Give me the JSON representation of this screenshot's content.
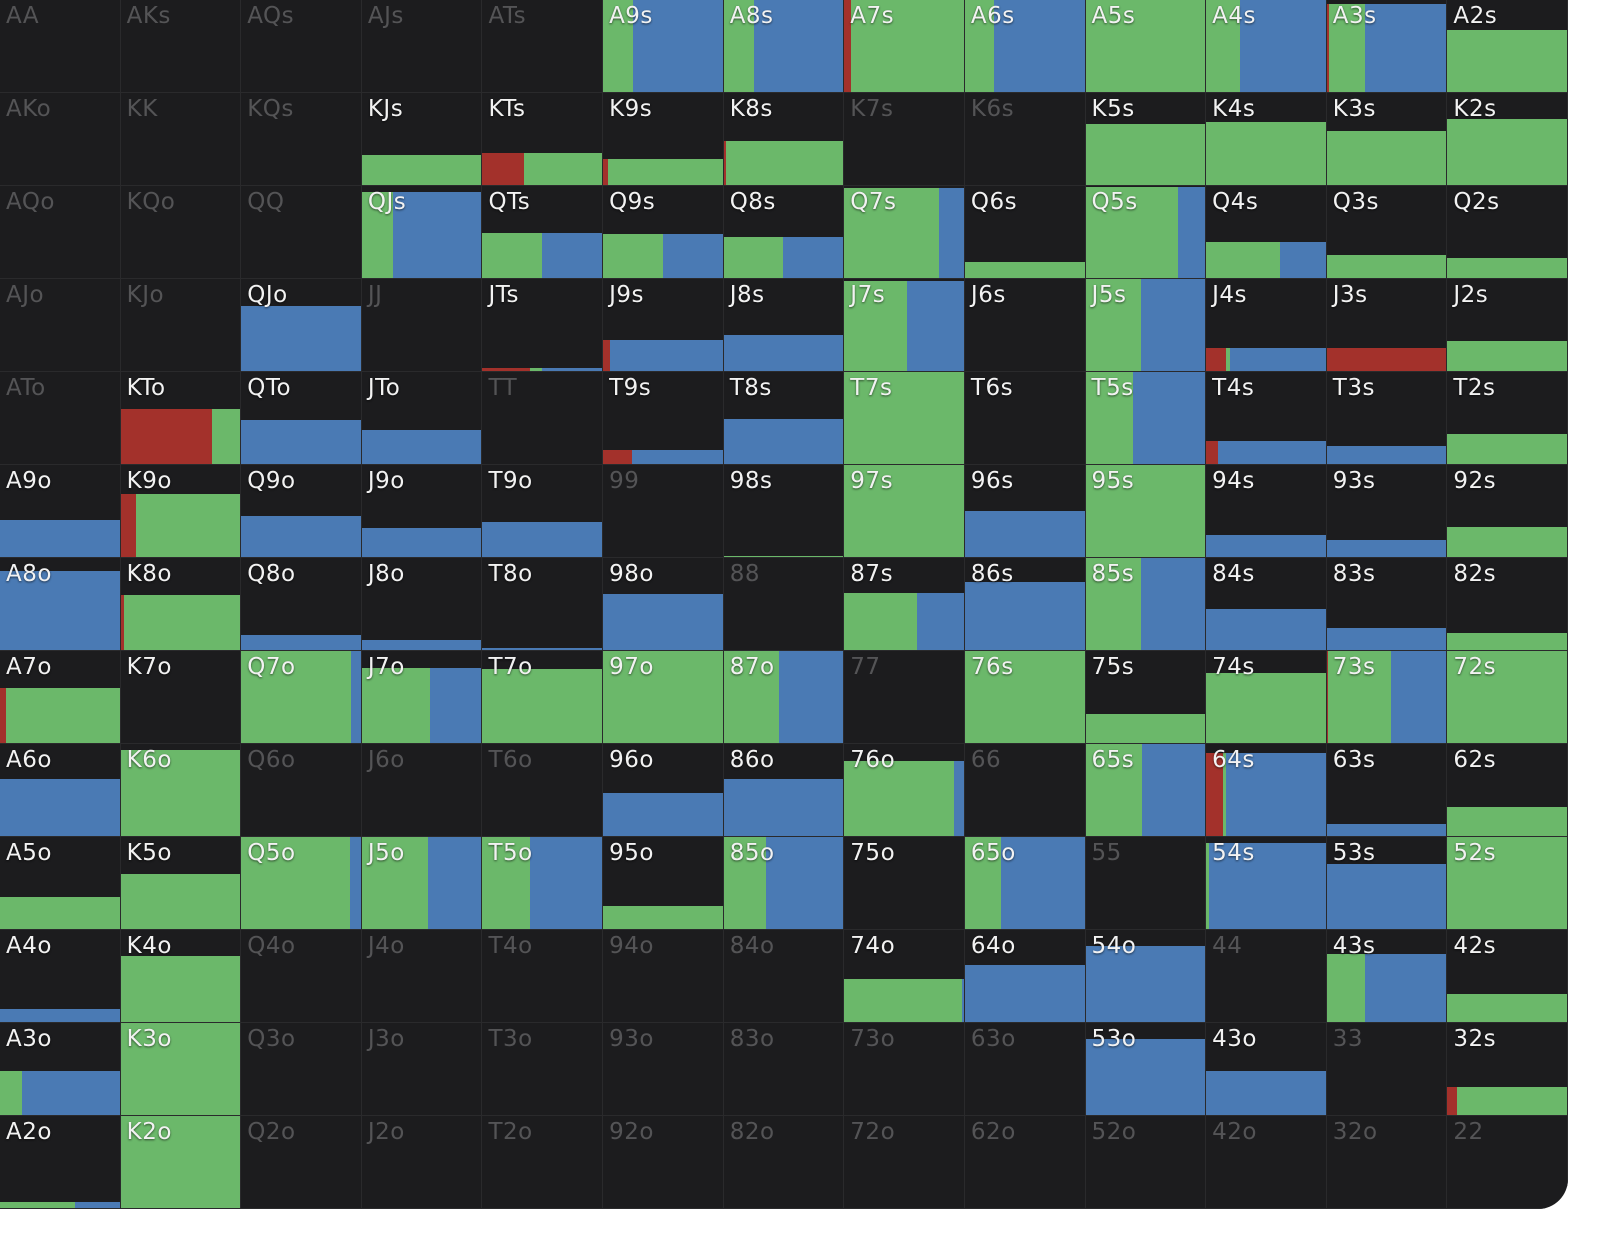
{
  "colors": {
    "raise": "#a3312b",
    "call": "#6bb86a",
    "fold_alt": "#4a7ab4",
    "background": "#1c1c1e"
  },
  "rows": [
    [
      {
        "label": "AA",
        "dim": true
      },
      {
        "label": "AKs",
        "dim": true
      },
      {
        "label": "AQs",
        "dim": true
      },
      {
        "label": "AJs",
        "dim": true
      },
      {
        "label": "ATs",
        "dim": true
      },
      {
        "label": "A9s",
        "h": 1,
        "seg": [
          0,
          0.25,
          0.75
        ]
      },
      {
        "label": "A8s",
        "h": 1,
        "seg": [
          0,
          0.25,
          0.75
        ]
      },
      {
        "label": "A7s",
        "h": 1,
        "seg": [
          0.06,
          0.94,
          0
        ]
      },
      {
        "label": "A6s",
        "h": 1,
        "seg": [
          0,
          0.24,
          0.76
        ]
      },
      {
        "label": "A5s",
        "h": 1,
        "seg": [
          0,
          1,
          0
        ]
      },
      {
        "label": "A4s",
        "h": 1,
        "seg": [
          0,
          0.28,
          0.72
        ]
      },
      {
        "label": "A3s",
        "h": 0.96,
        "seg": [
          0.02,
          0.3,
          0.68
        ]
      },
      {
        "label": "A2s",
        "h": 0.67,
        "seg": [
          0,
          1,
          0
        ]
      }
    ],
    [
      {
        "label": "AKo",
        "dim": true
      },
      {
        "label": "KK",
        "dim": true
      },
      {
        "label": "KQs",
        "dim": true
      },
      {
        "label": "KJs",
        "h": 0.33,
        "seg": [
          0,
          1,
          0
        ]
      },
      {
        "label": "KTs",
        "h": 0.35,
        "seg": [
          0.35,
          0.65,
          0
        ]
      },
      {
        "label": "K9s",
        "h": 0.28,
        "seg": [
          0.04,
          0.96,
          0
        ]
      },
      {
        "label": "K8s",
        "h": 0.48,
        "seg": [
          0.02,
          0.98,
          0
        ]
      },
      {
        "label": "K7s",
        "dim": true
      },
      {
        "label": "K6s",
        "dim": true
      },
      {
        "label": "K5s",
        "h": 0.66,
        "seg": [
          0,
          1,
          0
        ]
      },
      {
        "label": "K4s",
        "h": 0.68,
        "seg": [
          0,
          1,
          0
        ]
      },
      {
        "label": "K3s",
        "h": 0.59,
        "seg": [
          0,
          1,
          0
        ]
      },
      {
        "label": "K2s",
        "h": 0.72,
        "seg": [
          0,
          1,
          0
        ]
      }
    ],
    [
      {
        "label": "AQo",
        "dim": true
      },
      {
        "label": "KQo",
        "dim": true
      },
      {
        "label": "QQ",
        "dim": true
      },
      {
        "label": "QJs",
        "h": 0.94,
        "seg": [
          0,
          0.26,
          0.74
        ]
      },
      {
        "label": "QTs",
        "h": 0.49,
        "seg": [
          0,
          0.5,
          0.5
        ]
      },
      {
        "label": "Q9s",
        "h": 0.48,
        "seg": [
          0,
          0.5,
          0.5
        ]
      },
      {
        "label": "Q8s",
        "h": 0.45,
        "seg": [
          0,
          0.5,
          0.5
        ]
      },
      {
        "label": "Q7s",
        "h": 0.98,
        "seg": [
          0,
          0.79,
          0.21
        ]
      },
      {
        "label": "Q6s",
        "h": 0.17,
        "seg": [
          0,
          1,
          0
        ]
      },
      {
        "label": "Q5s",
        "h": 0.99,
        "seg": [
          0,
          0.77,
          0.23
        ]
      },
      {
        "label": "Q4s",
        "h": 0.39,
        "seg": [
          0,
          0.62,
          0.38
        ]
      },
      {
        "label": "Q3s",
        "h": 0.25,
        "seg": [
          0,
          1,
          0
        ]
      },
      {
        "label": "Q2s",
        "h": 0.22,
        "seg": [
          0,
          1,
          0
        ]
      }
    ],
    [
      {
        "label": "AJo",
        "dim": true
      },
      {
        "label": "KJo",
        "dim": true
      },
      {
        "label": "QJo",
        "h": 0.71,
        "seg": [
          0,
          0,
          1
        ]
      },
      {
        "label": "JJ",
        "dim": true
      },
      {
        "label": "JTs",
        "h": 0.03,
        "seg": [
          0.4,
          0.1,
          0.5
        ]
      },
      {
        "label": "J9s",
        "h": 0.34,
        "seg": [
          0.06,
          0,
          0.94
        ]
      },
      {
        "label": "J8s",
        "h": 0.39,
        "seg": [
          0,
          0,
          1
        ]
      },
      {
        "label": "J7s",
        "h": 0.98,
        "seg": [
          0,
          0.52,
          0.48
        ]
      },
      {
        "label": "J6s",
        "h": 0
      },
      {
        "label": "J5s",
        "h": 1,
        "seg": [
          0,
          0.46,
          0.54
        ]
      },
      {
        "label": "J4s",
        "h": 0.25,
        "seg": [
          0.17,
          0.03,
          0.8
        ]
      },
      {
        "label": "J3s",
        "h": 0.25,
        "seg": [
          1,
          0,
          0
        ]
      },
      {
        "label": "J2s",
        "h": 0.33,
        "seg": [
          0,
          1,
          0
        ]
      }
    ],
    [
      {
        "label": "ATo",
        "dim": true
      },
      {
        "label": "KTo",
        "h": 0.6,
        "seg": [
          0.76,
          0.24,
          0
        ]
      },
      {
        "label": "QTo",
        "h": 0.48,
        "seg": [
          0,
          0,
          1
        ]
      },
      {
        "label": "JTo",
        "h": 0.37,
        "seg": [
          0,
          0,
          1
        ]
      },
      {
        "label": "TT",
        "dim": true
      },
      {
        "label": "T9s",
        "h": 0.15,
        "seg": [
          0.24,
          0,
          0.76
        ]
      },
      {
        "label": "T8s",
        "h": 0.49,
        "seg": [
          0,
          0,
          1
        ]
      },
      {
        "label": "T7s",
        "h": 1,
        "seg": [
          0,
          1,
          0
        ]
      },
      {
        "label": "T6s",
        "h": 0
      },
      {
        "label": "T5s",
        "h": 1,
        "seg": [
          0,
          0.4,
          0.6
        ]
      },
      {
        "label": "T4s",
        "h": 0.25,
        "seg": [
          0.1,
          0,
          0.9
        ]
      },
      {
        "label": "T3s",
        "h": 0.2,
        "seg": [
          0,
          0,
          1
        ]
      },
      {
        "label": "T2s",
        "h": 0.33,
        "seg": [
          0,
          1,
          0
        ]
      }
    ],
    [
      {
        "label": "A9o",
        "h": 0.4,
        "seg": [
          0,
          0,
          1
        ]
      },
      {
        "label": "K9o",
        "h": 0.68,
        "seg": [
          0.13,
          0.87,
          0
        ]
      },
      {
        "label": "Q9o",
        "h": 0.45,
        "seg": [
          0,
          0,
          1
        ]
      },
      {
        "label": "J9o",
        "h": 0.31,
        "seg": [
          0,
          0,
          1
        ]
      },
      {
        "label": "T9o",
        "h": 0.38,
        "seg": [
          0,
          0,
          1
        ]
      },
      {
        "label": "99",
        "dim": true
      },
      {
        "label": "98s",
        "h": 0.01,
        "seg": [
          0,
          1,
          0
        ]
      },
      {
        "label": "97s",
        "h": 1,
        "seg": [
          0,
          1,
          0
        ]
      },
      {
        "label": "96s",
        "h": 0.5,
        "seg": [
          0,
          0,
          1
        ]
      },
      {
        "label": "95s",
        "h": 1,
        "seg": [
          0,
          1,
          0
        ]
      },
      {
        "label": "94s",
        "h": 0.24,
        "seg": [
          0,
          0,
          1
        ]
      },
      {
        "label": "93s",
        "h": 0.19,
        "seg": [
          0,
          0,
          1
        ]
      },
      {
        "label": "92s",
        "h": 0.33,
        "seg": [
          0,
          1,
          0
        ]
      }
    ],
    [
      {
        "label": "A8o",
        "h": 0.86,
        "seg": [
          0,
          0,
          1
        ]
      },
      {
        "label": "K8o",
        "h": 0.6,
        "seg": [
          0.03,
          0.97,
          0
        ]
      },
      {
        "label": "Q8o",
        "h": 0.16,
        "seg": [
          0,
          0,
          1
        ]
      },
      {
        "label": "J8o",
        "h": 0.11,
        "seg": [
          0,
          0,
          1
        ]
      },
      {
        "label": "T8o",
        "h": 0.02,
        "seg": [
          0,
          0,
          1
        ]
      },
      {
        "label": "98o",
        "h": 0.61,
        "seg": [
          0,
          0,
          1
        ]
      },
      {
        "label": "88",
        "dim": true
      },
      {
        "label": "87s",
        "h": 0.62,
        "seg": [
          0,
          0.61,
          0.39
        ]
      },
      {
        "label": "86s",
        "h": 0.74,
        "seg": [
          0,
          0,
          1
        ]
      },
      {
        "label": "85s",
        "h": 1,
        "seg": [
          0,
          0.46,
          0.54
        ]
      },
      {
        "label": "84s",
        "h": 0.45,
        "seg": [
          0,
          0,
          1
        ]
      },
      {
        "label": "83s",
        "h": 0.24,
        "seg": [
          0,
          0,
          1
        ]
      },
      {
        "label": "82s",
        "h": 0.18,
        "seg": [
          0,
          1,
          0
        ]
      }
    ],
    [
      {
        "label": "A7o",
        "h": 0.6,
        "seg": [
          0.05,
          0.95,
          0
        ]
      },
      {
        "label": "K7o",
        "h": 0
      },
      {
        "label": "Q7o",
        "h": 1,
        "seg": [
          0,
          0.92,
          0.08
        ]
      },
      {
        "label": "J7o",
        "h": 0.82,
        "seg": [
          0,
          0.57,
          0.43
        ]
      },
      {
        "label": "T7o",
        "h": 0.8,
        "seg": [
          0,
          1,
          0
        ]
      },
      {
        "label": "97o",
        "h": 1,
        "seg": [
          0,
          1,
          0
        ]
      },
      {
        "label": "87o",
        "h": 1,
        "seg": [
          0,
          0.46,
          0.54
        ]
      },
      {
        "label": "77",
        "dim": true
      },
      {
        "label": "76s",
        "h": 1,
        "seg": [
          0,
          1,
          0
        ]
      },
      {
        "label": "75s",
        "h": 0.32,
        "seg": [
          0,
          1,
          0
        ]
      },
      {
        "label": "74s",
        "h": 0.76,
        "seg": [
          0,
          1,
          0
        ]
      },
      {
        "label": "73s",
        "h": 1,
        "seg": [
          0.01,
          0.53,
          0.46
        ]
      },
      {
        "label": "72s",
        "h": 1,
        "seg": [
          0,
          1,
          0
        ]
      }
    ],
    [
      {
        "label": "A6o",
        "h": 0.62,
        "seg": [
          0,
          0,
          1
        ]
      },
      {
        "label": "K6o",
        "h": 0.93,
        "seg": [
          0,
          1,
          0
        ]
      },
      {
        "label": "Q6o",
        "dim": true
      },
      {
        "label": "J6o",
        "dim": true
      },
      {
        "label": "T6o",
        "dim": true
      },
      {
        "label": "96o",
        "h": 0.47,
        "seg": [
          0,
          0,
          1
        ]
      },
      {
        "label": "86o",
        "h": 0.62,
        "seg": [
          0,
          0,
          1
        ]
      },
      {
        "label": "76o",
        "h": 0.82,
        "seg": [
          0,
          0.92,
          0.08
        ]
      },
      {
        "label": "66",
        "dim": true
      },
      {
        "label": "65s",
        "h": 1,
        "seg": [
          0,
          0.47,
          0.53
        ]
      },
      {
        "label": "64s",
        "h": 0.9,
        "seg": [
          0.14,
          0.03,
          0.83
        ]
      },
      {
        "label": "63s",
        "h": 0.13,
        "seg": [
          0,
          0,
          1
        ]
      },
      {
        "label": "62s",
        "h": 0.31,
        "seg": [
          0,
          1,
          0
        ]
      }
    ],
    [
      {
        "label": "A5o",
        "h": 0.35,
        "seg": [
          0,
          1,
          0
        ]
      },
      {
        "label": "K5o",
        "h": 0.6,
        "seg": [
          0,
          1,
          0
        ]
      },
      {
        "label": "Q5o",
        "h": 1,
        "seg": [
          0,
          0.91,
          0.09
        ]
      },
      {
        "label": "J5o",
        "h": 1,
        "seg": [
          0,
          0.55,
          0.45
        ]
      },
      {
        "label": "T5o",
        "h": 1,
        "seg": [
          0,
          0.4,
          0.6
        ]
      },
      {
        "label": "95o",
        "h": 0.25,
        "seg": [
          0,
          1,
          0
        ]
      },
      {
        "label": "85o",
        "h": 1,
        "seg": [
          0,
          0.35,
          0.65
        ]
      },
      {
        "label": "75o",
        "h": 0
      },
      {
        "label": "65o",
        "h": 1,
        "seg": [
          0,
          0.3,
          0.7
        ]
      },
      {
        "label": "55",
        "dim": true
      },
      {
        "label": "54s",
        "h": 0.94,
        "seg": [
          0,
          0.02,
          0.98
        ]
      },
      {
        "label": "53s",
        "h": 0.71,
        "seg": [
          0,
          0,
          1
        ]
      },
      {
        "label": "52s",
        "h": 1,
        "seg": [
          0,
          1,
          0
        ]
      }
    ],
    [
      {
        "label": "A4o",
        "h": 0.14,
        "seg": [
          0,
          0,
          1
        ]
      },
      {
        "label": "K4o",
        "h": 0.72,
        "seg": [
          0,
          1,
          0
        ]
      },
      {
        "label": "Q4o",
        "dim": true
      },
      {
        "label": "J4o",
        "dim": true
      },
      {
        "label": "T4o",
        "dim": true
      },
      {
        "label": "94o",
        "dim": true
      },
      {
        "label": "84o",
        "dim": true
      },
      {
        "label": "74o",
        "h": 0.47,
        "seg": [
          0,
          0.98,
          0.02
        ]
      },
      {
        "label": "64o",
        "h": 0.62,
        "seg": [
          0,
          0,
          1
        ]
      },
      {
        "label": "54o",
        "h": 0.83,
        "seg": [
          0,
          0,
          1
        ]
      },
      {
        "label": "44",
        "dim": true
      },
      {
        "label": "43s",
        "h": 0.74,
        "seg": [
          0,
          0.32,
          0.68
        ]
      },
      {
        "label": "42s",
        "h": 0.3,
        "seg": [
          0,
          1,
          0
        ]
      }
    ],
    [
      {
        "label": "A3o",
        "h": 0.48,
        "seg": [
          0,
          0.18,
          0.82
        ]
      },
      {
        "label": "K3o",
        "h": 1,
        "seg": [
          0,
          1,
          0
        ]
      },
      {
        "label": "Q3o",
        "dim": true
      },
      {
        "label": "J3o",
        "dim": true
      },
      {
        "label": "T3o",
        "dim": true
      },
      {
        "label": "93o",
        "dim": true
      },
      {
        "label": "83o",
        "dim": true
      },
      {
        "label": "73o",
        "dim": true
      },
      {
        "label": "63o",
        "dim": true
      },
      {
        "label": "53o",
        "h": 0.83,
        "seg": [
          0,
          0,
          1
        ]
      },
      {
        "label": "43o",
        "h": 0.48,
        "seg": [
          0,
          0,
          1
        ]
      },
      {
        "label": "33",
        "dim": true
      },
      {
        "label": "32s",
        "h": 0.3,
        "seg": [
          0.08,
          0.92,
          0
        ]
      }
    ],
    [
      {
        "label": "A2o",
        "h": 0.06,
        "seg": [
          0,
          0.63,
          0.37
        ]
      },
      {
        "label": "K2o",
        "h": 1,
        "seg": [
          0,
          1,
          0
        ]
      },
      {
        "label": "Q2o",
        "dim": true
      },
      {
        "label": "J2o",
        "dim": true
      },
      {
        "label": "T2o",
        "dim": true
      },
      {
        "label": "92o",
        "dim": true
      },
      {
        "label": "82o",
        "dim": true
      },
      {
        "label": "72o",
        "dim": true
      },
      {
        "label": "62o",
        "dim": true
      },
      {
        "label": "52o",
        "dim": true
      },
      {
        "label": "42o",
        "dim": true
      },
      {
        "label": "32o",
        "dim": true
      },
      {
        "label": "22",
        "dim": true
      }
    ]
  ]
}
